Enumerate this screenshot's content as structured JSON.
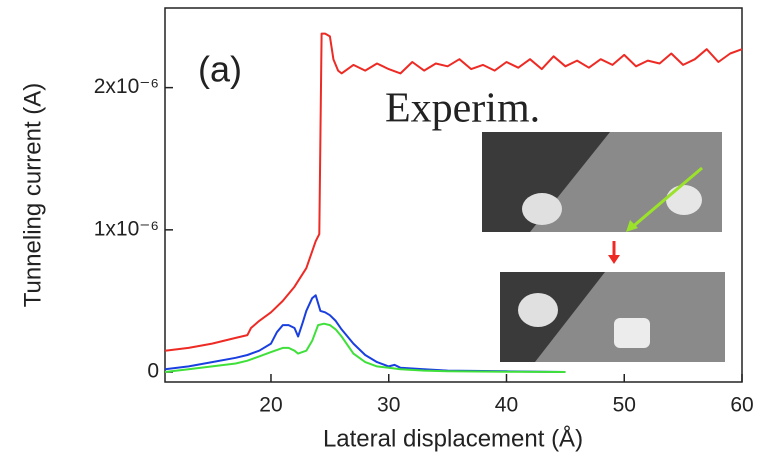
{
  "chart_data": {
    "type": "line",
    "x_label": "Lateral displacement (Å)",
    "y_label": "Tunneling current (A)",
    "annotations": [
      "(a)",
      "Experim."
    ],
    "xlim": [
      11,
      60
    ],
    "xticks": [
      20,
      30,
      40,
      50,
      60
    ],
    "ylim": [
      -7e-08,
      2.56e-06
    ],
    "yticks": [
      0,
      {
        "value": 1e-06,
        "label": "1x10⁻⁶"
      },
      {
        "value": 2e-06,
        "label": "2x10⁻⁶"
      }
    ],
    "series": [
      {
        "color": "#ee2a24",
        "x": [
          11,
          13,
          15,
          17,
          18,
          18.3,
          19,
          20,
          21,
          22,
          23,
          23.8,
          24.1,
          24.3,
          24.6,
          25,
          25.3,
          25.7,
          26,
          27,
          28,
          29,
          30,
          31,
          32,
          33,
          34,
          35,
          36,
          37,
          38,
          39,
          40,
          41,
          42,
          43,
          44,
          45,
          46,
          47,
          48,
          49,
          50,
          51,
          52,
          53,
          54,
          55,
          56,
          57,
          58,
          59,
          60
        ],
        "values": [
          1.5e-07,
          1.7e-07,
          2e-07,
          2.4e-07,
          2.6e-07,
          3.1e-07,
          3.6e-07,
          4.2e-07,
          5e-07,
          6e-07,
          7.3e-07,
          9.2e-07,
          9.7e-07,
          2.38e-06,
          2.38e-06,
          2.36e-06,
          2.2e-06,
          2.12e-06,
          2.1e-06,
          2.16e-06,
          2.12e-06,
          2.17e-06,
          2.13e-06,
          2.1e-06,
          2.18e-06,
          2.12e-06,
          2.17e-06,
          2.15e-06,
          2.2e-06,
          2.13e-06,
          2.16e-06,
          2.12e-06,
          2.18e-06,
          2.14e-06,
          2.2e-06,
          2.13e-06,
          2.22e-06,
          2.15e-06,
          2.19e-06,
          2.14e-06,
          2.2e-06,
          2.16e-06,
          2.23e-06,
          2.15e-06,
          2.19e-06,
          2.17e-06,
          2.24e-06,
          2.16e-06,
          2.2e-06,
          2.27e-06,
          2.18e-06,
          2.24e-06,
          2.27e-06
        ]
      },
      {
        "color": "#1a3fe0",
        "x": [
          11,
          13,
          15,
          17,
          18,
          19,
          20,
          20.5,
          21,
          21.5,
          22,
          22.3,
          22.7,
          23,
          23.5,
          23.8,
          24.2,
          24.6,
          25,
          25.5,
          26,
          27,
          28,
          29,
          30,
          30.5,
          31,
          33,
          35,
          40,
          45
        ],
        "values": [
          2e-08,
          4e-08,
          7e-08,
          1e-07,
          1.2e-07,
          1.5e-07,
          2e-07,
          2.8e-07,
          3.3e-07,
          3.3e-07,
          3.1e-07,
          2.5e-07,
          3.5e-07,
          4.3e-07,
          5.2e-07,
          5.4e-07,
          4.3e-07,
          4.2e-07,
          4e-07,
          3.6e-07,
          3e-07,
          2e-07,
          1.2e-07,
          7e-08,
          4e-08,
          5e-08,
          3e-08,
          2e-08,
          1e-08,
          5e-09,
          0
        ]
      },
      {
        "color": "#3fe03a",
        "x": [
          11,
          13,
          15,
          17,
          18,
          19,
          20,
          21,
          21.5,
          22,
          22.3,
          23,
          23.5,
          24,
          24.5,
          25,
          25.5,
          26,
          27,
          28,
          29,
          30,
          31,
          33,
          35,
          40,
          45
        ],
        "values": [
          0,
          2e-08,
          4e-08,
          6e-08,
          8e-08,
          1.1e-07,
          1.4e-07,
          1.7e-07,
          1.7e-07,
          1.5e-07,
          1.3e-07,
          1.5e-07,
          2.2e-07,
          3.3e-07,
          3.4e-07,
          3.3e-07,
          3e-07,
          2.5e-07,
          1.3e-07,
          7e-08,
          4e-08,
          3e-08,
          2e-08,
          1e-08,
          5e-09,
          2e-09,
          0
        ]
      }
    ]
  }
}
